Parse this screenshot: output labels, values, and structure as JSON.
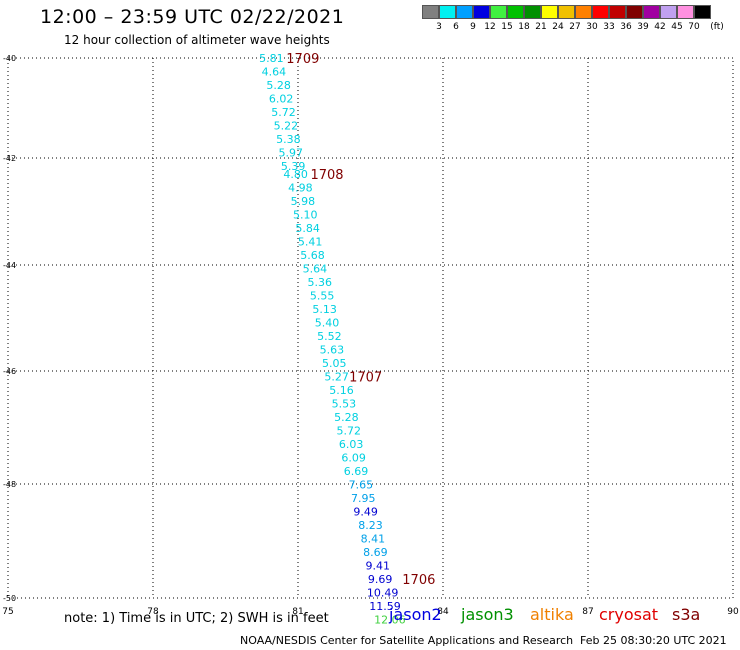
{
  "header": {
    "title": "12:00 – 23:59 UTC 02/22/2021",
    "subtitle": "12 hour collection of altimeter wave heights"
  },
  "color_scale": {
    "unit_label": "(ft)",
    "colors": [
      "#808080",
      "#00f0f0",
      "#00a0ff",
      "#0000e0",
      "#40f040",
      "#00c000",
      "#009000",
      "#ffff00",
      "#f0c000",
      "#ff8000",
      "#ff0000",
      "#c00000",
      "#800000",
      "#a000a0",
      "#c0a0f0",
      "#ff90e0",
      "#000000"
    ],
    "ticks": [
      "3",
      "6",
      "9",
      "12",
      "15",
      "18",
      "21",
      "24",
      "27",
      "30",
      "33",
      "36",
      "39",
      "42",
      "45",
      "70"
    ]
  },
  "axes": {
    "x_ticks": [
      "75",
      "78",
      "81",
      "84",
      "87",
      "90"
    ],
    "y_ticks": [
      "-40",
      "-42",
      "-44",
      "-46",
      "-48",
      "-50"
    ]
  },
  "chart_data": {
    "type": "scatter",
    "x_axis": "longitude",
    "y_axis": "latitude",
    "xlim": [
      75,
      90
    ],
    "ylim": [
      -50,
      -40
    ],
    "grid": true,
    "observations": [
      {
        "lon": 80.45,
        "lat": -40.0,
        "swh": "5.81",
        "color": "#00d0e0"
      },
      {
        "lon": 80.5,
        "lat": -40.25,
        "swh": "4.64",
        "color": "#00d0e0"
      },
      {
        "lon": 80.6,
        "lat": -40.5,
        "swh": "5.28",
        "color": "#00d0e0"
      },
      {
        "lon": 80.65,
        "lat": -40.75,
        "swh": "6.02",
        "color": "#00d0e0"
      },
      {
        "lon": 80.7,
        "lat": -41.0,
        "swh": "5.72",
        "color": "#00d0e0"
      },
      {
        "lon": 80.75,
        "lat": -41.25,
        "swh": "5.22",
        "color": "#00d0e0"
      },
      {
        "lon": 80.8,
        "lat": -41.5,
        "swh": "5.38",
        "color": "#00d0e0"
      },
      {
        "lon": 80.85,
        "lat": -41.75,
        "swh": "5.97",
        "color": "#00d0e0"
      },
      {
        "lon": 80.9,
        "lat": -42.0,
        "swh": "5.39",
        "color": "#00d0e0"
      },
      {
        "lon": 80.95,
        "lat": -42.15,
        "swh": "4.80",
        "color": "#00d0e0"
      },
      {
        "lon": 81.05,
        "lat": -42.4,
        "swh": "4.98",
        "color": "#00d0e0"
      },
      {
        "lon": 81.1,
        "lat": -42.65,
        "swh": "5.98",
        "color": "#00d0e0"
      },
      {
        "lon": 81.15,
        "lat": -42.9,
        "swh": "5.10",
        "color": "#00d0e0"
      },
      {
        "lon": 81.2,
        "lat": -43.15,
        "swh": "5.84",
        "color": "#00d0e0"
      },
      {
        "lon": 81.25,
        "lat": -43.4,
        "swh": "5.41",
        "color": "#00d0e0"
      },
      {
        "lon": 81.3,
        "lat": -43.65,
        "swh": "5.68",
        "color": "#00d0e0"
      },
      {
        "lon": 81.35,
        "lat": -43.9,
        "swh": "5.64",
        "color": "#00d0e0"
      },
      {
        "lon": 81.45,
        "lat": -44.15,
        "swh": "5.36",
        "color": "#00d0e0"
      },
      {
        "lon": 81.5,
        "lat": -44.4,
        "swh": "5.55",
        "color": "#00d0e0"
      },
      {
        "lon": 81.55,
        "lat": -44.65,
        "swh": "5.13",
        "color": "#00d0e0"
      },
      {
        "lon": 81.6,
        "lat": -44.9,
        "swh": "5.40",
        "color": "#00d0e0"
      },
      {
        "lon": 81.65,
        "lat": -45.15,
        "swh": "5.52",
        "color": "#00d0e0"
      },
      {
        "lon": 81.7,
        "lat": -45.4,
        "swh": "5.63",
        "color": "#00d0e0"
      },
      {
        "lon": 81.75,
        "lat": -45.65,
        "swh": "5.05",
        "color": "#00d0e0"
      },
      {
        "lon": 81.8,
        "lat": -45.9,
        "swh": "5.27",
        "color": "#00d0e0"
      },
      {
        "lon": 81.9,
        "lat": -46.15,
        "swh": "5.16",
        "color": "#00d0e0"
      },
      {
        "lon": 81.95,
        "lat": -46.4,
        "swh": "5.53",
        "color": "#00d0e0"
      },
      {
        "lon": 82.0,
        "lat": -46.65,
        "swh": "5.28",
        "color": "#00d0e0"
      },
      {
        "lon": 82.05,
        "lat": -46.9,
        "swh": "5.72",
        "color": "#00d0e0"
      },
      {
        "lon": 82.1,
        "lat": -47.15,
        "swh": "6.03",
        "color": "#00d0e0"
      },
      {
        "lon": 82.15,
        "lat": -47.4,
        "swh": "6.09",
        "color": "#00d0e0"
      },
      {
        "lon": 82.2,
        "lat": -47.65,
        "swh": "6.69",
        "color": "#00d0e0"
      },
      {
        "lon": 82.3,
        "lat": -47.9,
        "swh": "7.65",
        "color": "#00a0e8"
      },
      {
        "lon": 82.35,
        "lat": -48.15,
        "swh": "7.95",
        "color": "#00a0e8"
      },
      {
        "lon": 82.4,
        "lat": -48.4,
        "swh": "9.49",
        "color": "#0000d0"
      },
      {
        "lon": 82.5,
        "lat": -48.65,
        "swh": "8.23",
        "color": "#00a0e8"
      },
      {
        "lon": 82.55,
        "lat": -48.9,
        "swh": "8.41",
        "color": "#00a0e8"
      },
      {
        "lon": 82.6,
        "lat": -49.15,
        "swh": "8.69",
        "color": "#00a0e8"
      },
      {
        "lon": 82.65,
        "lat": -49.4,
        "swh": "9.41",
        "color": "#0000d0"
      },
      {
        "lon": 82.7,
        "lat": -49.65,
        "swh": "9.69",
        "color": "#0000d0"
      },
      {
        "lon": 82.75,
        "lat": -49.9,
        "swh": "10.49",
        "color": "#0000d0"
      },
      {
        "lon": 82.8,
        "lat": -50.15,
        "swh": "11.59",
        "color": "#0000d0"
      },
      {
        "lon": 82.9,
        "lat": -50.4,
        "swh": "12.06",
        "color": "#40d040"
      }
    ],
    "time_labels": [
      {
        "lon": 81.1,
        "lat": -40.0,
        "text": "1709",
        "color": "#800000"
      },
      {
        "lon": 81.6,
        "lat": -42.15,
        "text": "1708",
        "color": "#800000"
      },
      {
        "lon": 82.4,
        "lat": -45.9,
        "text": "1707",
        "color": "#800000"
      },
      {
        "lon": 83.5,
        "lat": -49.65,
        "text": "1706",
        "color": "#800000"
      }
    ]
  },
  "footer": {
    "note": "note: 1) Time is in UTC; 2) SWH is in feet",
    "credit": "NOAA/NESDIS Center for Satellite Applications and Research",
    "timestamp": "Feb 25 08:30:20 UTC 2021",
    "satellites": [
      {
        "name": "jason2",
        "color": "#0000e0"
      },
      {
        "name": "jason3",
        "color": "#009000"
      },
      {
        "name": "altika",
        "color": "#f08000"
      },
      {
        "name": "cryosat",
        "color": "#e00000"
      },
      {
        "name": "s3a",
        "color": "#800000"
      }
    ]
  }
}
